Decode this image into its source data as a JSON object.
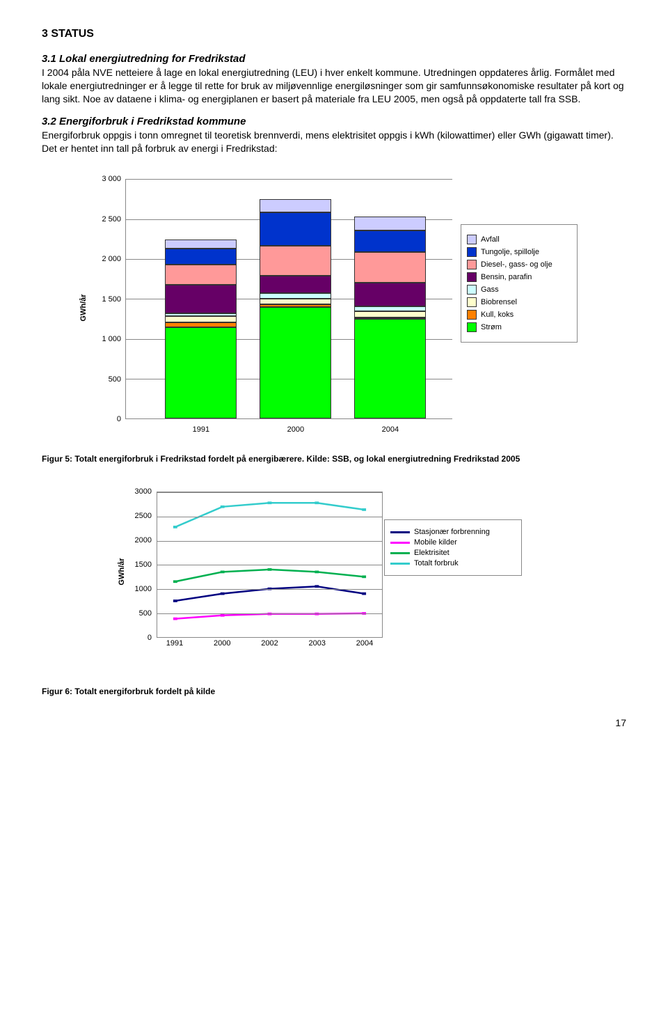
{
  "page_number": "17",
  "section_title": "3 STATUS",
  "sub1": {
    "title": "3.1 Lokal energiutredning for Fredrikstad",
    "text": "I 2004 påla NVE netteiere å lage en lokal energiutredning (LEU) i hver enkelt kommune. Utredningen oppdateres årlig. Formålet med lokale energiutredninger er å legge til rette for bruk av miljøvennlige energiløsninger som gir samfunnsøkonomiske resultater på kort og lang sikt. Noe av dataene i klima- og energiplanen er basert på materiale fra LEU 2005, men også på oppdaterte tall fra SSB."
  },
  "sub2": {
    "title": "3.2 Energiforbruk i Fredrikstad kommune",
    "text1": "Energiforbruk oppgis i tonn omregnet til teoretisk brennverdi, mens elektrisitet oppgis i kWh (kilowattimer) eller GWh (gigawatt timer).",
    "text2": "Det er hentet inn tall på forbruk av energi i Fredrikstad:"
  },
  "chart1": {
    "type": "stacked-bar",
    "y_axis_label": "GWh/år",
    "ymax": 3000,
    "ytick_step": 500,
    "y_ticks": [
      "0",
      "500",
      "1 000",
      "1 500",
      "2 000",
      "2 500",
      "3 000"
    ],
    "categories": [
      "1991",
      "2000",
      "2004"
    ],
    "series_order": [
      "strom",
      "kull",
      "biobrensel",
      "gass",
      "bensin",
      "diesel",
      "tungolje",
      "avfall"
    ],
    "series": {
      "strom": {
        "label": "Strøm",
        "color": "#00ff00",
        "values": [
          1150,
          1400,
          1250
        ]
      },
      "kull": {
        "label": "Kull, koks",
        "color": "#ff8000",
        "values": [
          60,
          30,
          0
        ]
      },
      "biobrensel": {
        "label": "Biobrensel",
        "color": "#ffffcc",
        "values": [
          80,
          70,
          80
        ]
      },
      "gass": {
        "label": "Gass",
        "color": "#ccffff",
        "values": [
          30,
          70,
          60
        ]
      },
      "bensin": {
        "label": "Bensin, parafin",
        "color": "#660066",
        "values": [
          360,
          220,
          300
        ]
      },
      "diesel": {
        "label": "Diesel-, gass- og olje",
        "color": "#ff9999",
        "values": [
          250,
          380,
          380
        ]
      },
      "tungolje": {
        "label": "Tungolje, spillolje",
        "color": "#0033cc",
        "values": [
          200,
          420,
          270
        ]
      },
      "avfall": {
        "label": "Avfall",
        "color": "#ccccff",
        "values": [
          120,
          160,
          180
        ]
      }
    }
  },
  "fig5_caption": "Figur 5: Totalt energiforbruk i Fredrikstad fordelt på energibærere. Kilde: SSB, og lokal energiutredning Fredrikstad 2005",
  "chart2": {
    "type": "line",
    "y_axis_label": "GWh/år",
    "ymax": 3000,
    "ytick_step": 500,
    "y_ticks": [
      "0",
      "500",
      "1000",
      "1500",
      "2000",
      "2500",
      "3000"
    ],
    "x_labels": [
      "1991",
      "2000",
      "2002",
      "2003",
      "2004"
    ],
    "series": [
      {
        "key": "stasjonaer",
        "label": "Stasjonær forbrenning",
        "color": "#000080",
        "width": 2.5,
        "values": [
          750,
          900,
          1000,
          1050,
          900
        ]
      },
      {
        "key": "mobile",
        "label": "Mobile kilder",
        "color": "#ff00ff",
        "width": 2.5,
        "values": [
          380,
          450,
          480,
          480,
          490
        ]
      },
      {
        "key": "elektrisitet",
        "label": "Elektrisitet",
        "color": "#00b050",
        "width": 2.5,
        "values": [
          1150,
          1350,
          1400,
          1350,
          1250
        ]
      },
      {
        "key": "totalt",
        "label": "Totalt forbruk",
        "color": "#33cccc",
        "width": 2.5,
        "values": [
          2280,
          2700,
          2780,
          2780,
          2640
        ]
      }
    ]
  },
  "fig6_caption": "Figur 6: Totalt energiforbruk fordelt på kilde"
}
